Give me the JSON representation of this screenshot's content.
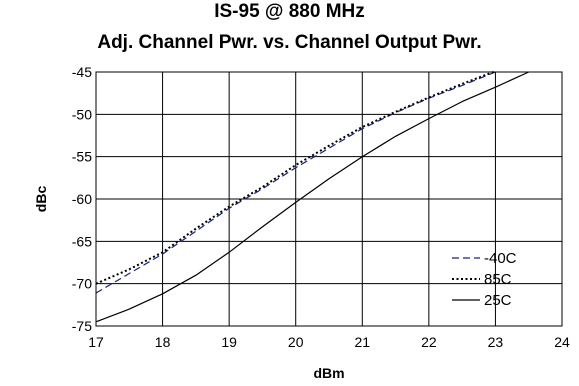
{
  "chart_data": {
    "type": "line",
    "title": "IS-95 @ 880 MHz",
    "subtitle": "Adj. Channel Pwr. vs. Channel Output Pwr.",
    "xlabel": "dBm",
    "ylabel": "dBc",
    "xlim": [
      17,
      24
    ],
    "ylim": [
      -75,
      -45
    ],
    "xticks": [
      17,
      18,
      19,
      20,
      21,
      22,
      23,
      24
    ],
    "yticks": [
      -45,
      -50,
      -55,
      -60,
      -65,
      -70,
      -75
    ],
    "grid": true,
    "legend_position": "bottom-right",
    "series": [
      {
        "name": "-40C",
        "style": "dashed",
        "color": "#1a237e",
        "x": [
          17,
          17.5,
          18,
          18.5,
          19,
          19.5,
          20,
          20.5,
          21,
          21.5,
          22,
          22.5,
          23
        ],
        "y": [
          -71.1,
          -68.8,
          -66.5,
          -63.8,
          -61.1,
          -58.8,
          -56.3,
          -54.0,
          -51.7,
          -49.8,
          -48.1,
          -46.6,
          -45.0
        ]
      },
      {
        "name": "85C",
        "style": "dotted",
        "color": "#000000",
        "x": [
          17,
          17.5,
          18,
          18.5,
          19,
          19.5,
          20,
          20.5,
          21,
          21.5,
          22,
          22.5,
          23
        ],
        "y": [
          -70.0,
          -68.3,
          -66.3,
          -63.5,
          -60.9,
          -58.6,
          -56.0,
          -53.7,
          -51.5,
          -49.7,
          -48.0,
          -46.4,
          -44.9
        ]
      },
      {
        "name": "25C",
        "style": "solid",
        "color": "#000000",
        "x": [
          17,
          17.5,
          18,
          18.5,
          19,
          19.5,
          20,
          20.5,
          21,
          21.5,
          22,
          22.5,
          23,
          23.5
        ],
        "y": [
          -74.5,
          -73.0,
          -71.2,
          -69.0,
          -66.3,
          -63.3,
          -60.4,
          -57.6,
          -55.0,
          -52.6,
          -50.5,
          -48.5,
          -46.8,
          -45.0
        ]
      }
    ]
  }
}
